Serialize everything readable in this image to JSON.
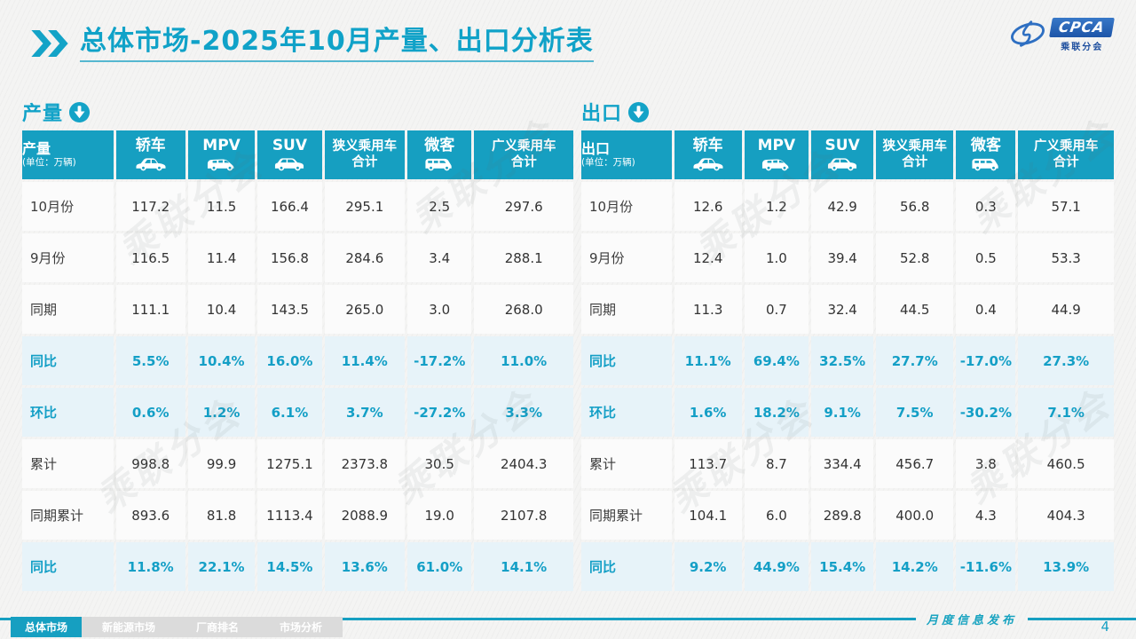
{
  "title": "总体市场-2025年10月产量、出口分析表",
  "logo": {
    "text": "CPCA",
    "subtext": "乘联分会"
  },
  "accent_color": "#169FC1",
  "highlight_row_bg": "#E7F3F9",
  "highlight_row_text": "#149FC6",
  "watermark_text": "乘联分会",
  "tables": [
    {
      "section_label": "产量",
      "corner_label": "产量",
      "unit": "(单位：万辆)",
      "columns": [
        {
          "label": "轿车",
          "icon": "sedan-icon"
        },
        {
          "label": "MPV",
          "icon": "mpv-icon"
        },
        {
          "label": "SUV",
          "icon": "suv-icon"
        },
        {
          "label": "狭义乘用车\n合计",
          "icon": null
        },
        {
          "label": "微客",
          "icon": "microvan-icon"
        },
        {
          "label": "广义乘用车\n合计",
          "icon": null
        }
      ],
      "rows": [
        {
          "label": "10月份",
          "highlight": false,
          "values": [
            "117.2",
            "11.5",
            "166.4",
            "295.1",
            "2.5",
            "297.6"
          ]
        },
        {
          "label": "9月份",
          "highlight": false,
          "values": [
            "116.5",
            "11.4",
            "156.8",
            "284.6",
            "3.4",
            "288.1"
          ]
        },
        {
          "label": "同期",
          "highlight": false,
          "values": [
            "111.1",
            "10.4",
            "143.5",
            "265.0",
            "3.0",
            "268.0"
          ]
        },
        {
          "label": "同比",
          "highlight": true,
          "values": [
            "5.5%",
            "10.4%",
            "16.0%",
            "11.4%",
            "-17.2%",
            "11.0%"
          ]
        },
        {
          "label": "环比",
          "highlight": true,
          "values": [
            "0.6%",
            "1.2%",
            "6.1%",
            "3.7%",
            "-27.2%",
            "3.3%"
          ]
        },
        {
          "label": "累计",
          "highlight": false,
          "values": [
            "998.8",
            "99.9",
            "1275.1",
            "2373.8",
            "30.5",
            "2404.3"
          ]
        },
        {
          "label": "同期累计",
          "highlight": false,
          "values": [
            "893.6",
            "81.8",
            "1113.4",
            "2088.9",
            "19.0",
            "2107.8"
          ]
        },
        {
          "label": "同比",
          "highlight": true,
          "values": [
            "11.8%",
            "22.1%",
            "14.5%",
            "13.6%",
            "61.0%",
            "14.1%"
          ]
        }
      ]
    },
    {
      "section_label": "出口",
      "corner_label": "出口",
      "unit": "(单位：万辆)",
      "columns": [
        {
          "label": "轿车",
          "icon": "sedan-icon"
        },
        {
          "label": "MPV",
          "icon": "mpv-icon"
        },
        {
          "label": "SUV",
          "icon": "suv-icon"
        },
        {
          "label": "狭义乘用车\n合计",
          "icon": null
        },
        {
          "label": "微客",
          "icon": "microvan-icon"
        },
        {
          "label": "广义乘用车\n合计",
          "icon": null
        }
      ],
      "rows": [
        {
          "label": "10月份",
          "highlight": false,
          "values": [
            "12.6",
            "1.2",
            "42.9",
            "56.8",
            "0.3",
            "57.1"
          ]
        },
        {
          "label": "9月份",
          "highlight": false,
          "values": [
            "12.4",
            "1.0",
            "39.4",
            "52.8",
            "0.5",
            "53.3"
          ]
        },
        {
          "label": "同期",
          "highlight": false,
          "values": [
            "11.3",
            "0.7",
            "32.4",
            "44.5",
            "0.4",
            "44.9"
          ]
        },
        {
          "label": "同比",
          "highlight": true,
          "values": [
            "11.1%",
            "69.4%",
            "32.5%",
            "27.7%",
            "-17.0%",
            "27.3%"
          ]
        },
        {
          "label": "环比",
          "highlight": true,
          "values": [
            "1.6%",
            "18.2%",
            "9.1%",
            "7.5%",
            "-30.2%",
            "7.1%"
          ]
        },
        {
          "label": "累计",
          "highlight": false,
          "values": [
            "113.7",
            "8.7",
            "334.4",
            "456.7",
            "3.8",
            "460.5"
          ]
        },
        {
          "label": "同期累计",
          "highlight": false,
          "values": [
            "104.1",
            "6.0",
            "289.8",
            "400.0",
            "4.3",
            "404.3"
          ]
        },
        {
          "label": "同比",
          "highlight": true,
          "values": [
            "9.2%",
            "44.9%",
            "15.4%",
            "14.2%",
            "-11.6%",
            "13.9%"
          ]
        }
      ]
    }
  ],
  "footer": {
    "publication": "月度信息发布",
    "page_number": "4",
    "tabs": [
      {
        "label": "总体市场",
        "active": true
      },
      {
        "label": "新能源市场",
        "active": false
      },
      {
        "label": "厂商排名",
        "active": false
      },
      {
        "label": "市场分析",
        "active": false
      }
    ]
  }
}
